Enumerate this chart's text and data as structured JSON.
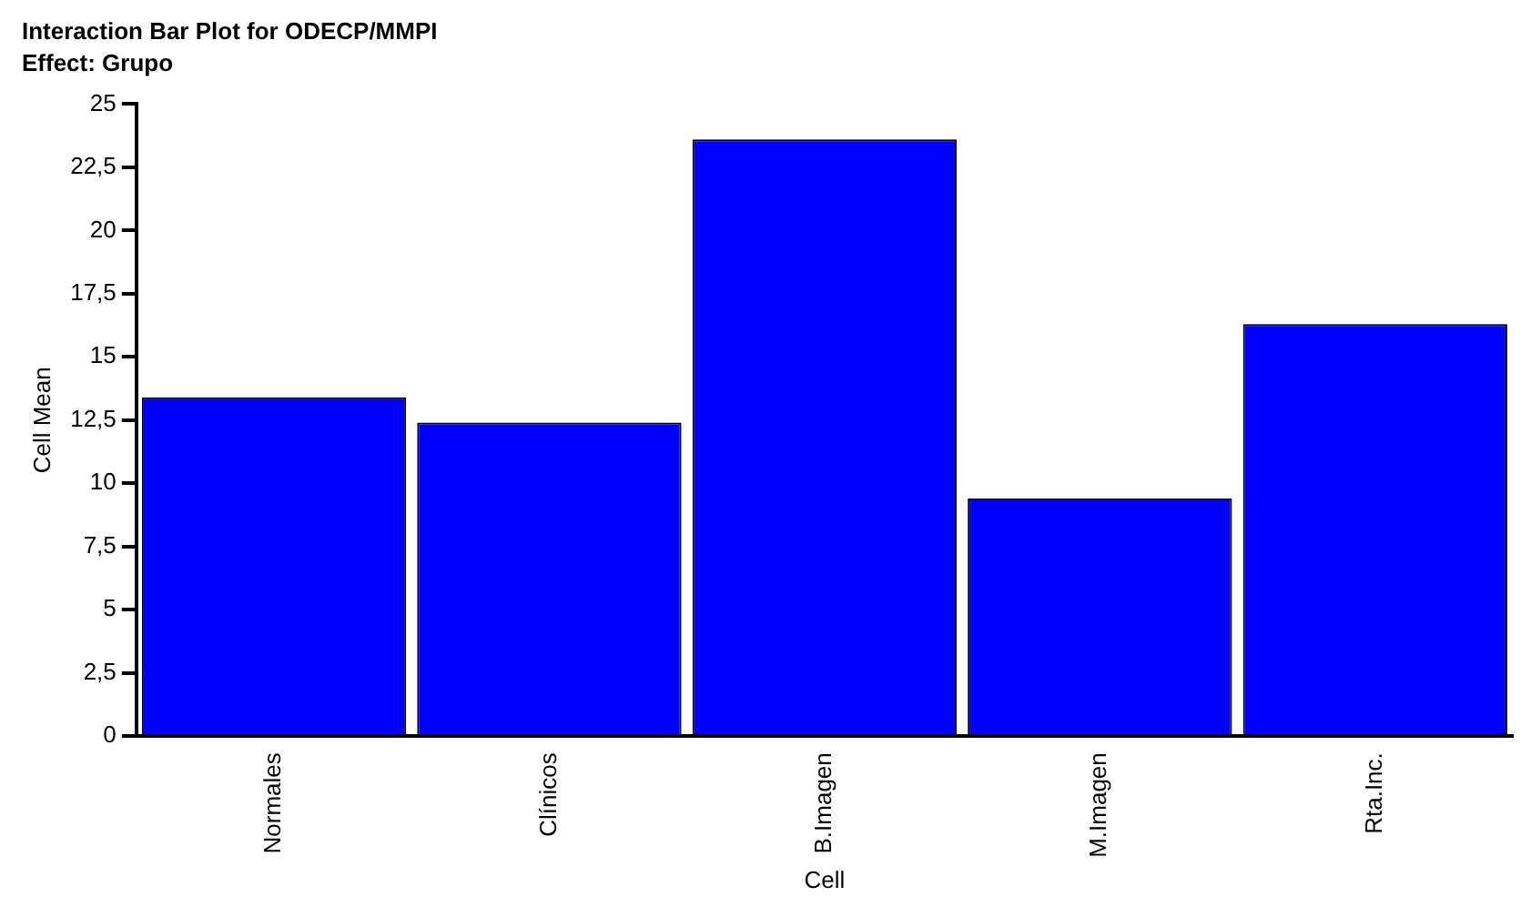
{
  "chart_data": {
    "type": "bar",
    "title": "Interaction Bar Plot for ODECP/MMPI",
    "subtitle": "Effect: Grupo",
    "xlabel": "Cell",
    "ylabel": "Cell Mean",
    "categories": [
      "Normales",
      "Clínicos",
      "B.Imagen",
      "M.Imagen",
      "Rta.Inc."
    ],
    "values": [
      13.4,
      12.4,
      23.6,
      9.4,
      16.3
    ],
    "color": "#0000ff",
    "ylim": [
      0,
      25
    ],
    "yticks": [
      0,
      {
        "value": 2.5,
        "label": "2,5"
      },
      5,
      {
        "value": 7.5,
        "label": "7,5"
      },
      10,
      {
        "value": 12.5,
        "label": "12,5"
      },
      15,
      {
        "value": 17.5,
        "label": "17,5"
      },
      20,
      {
        "value": 22.5,
        "label": "22,5"
      },
      25
    ],
    "grid": false,
    "legend": false
  }
}
